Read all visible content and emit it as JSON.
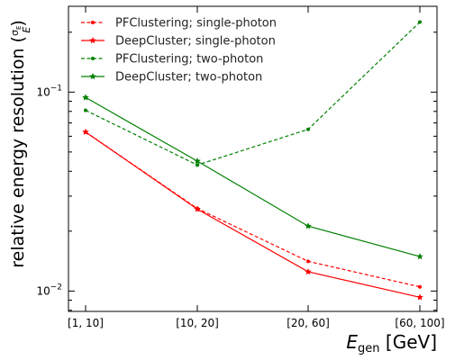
{
  "chart_data": {
    "type": "line",
    "categories": [
      "[1, 10]",
      "[10, 20]",
      "[20, 60]",
      "[60, 100]"
    ],
    "yscale": "log",
    "ylim": [
      0.0079,
      0.27
    ],
    "yticks": [
      {
        "value": 0.01,
        "base": "10",
        "exp": "−2"
      },
      {
        "value": 0.1,
        "base": "10",
        "exp": "−1"
      }
    ],
    "ylabel": {
      "text": "relative energy resolution (",
      "frac_num": "σ",
      "frac_num_sub": "E",
      "frac_den": "E",
      "close": ")"
    },
    "xlabel": {
      "var": "E",
      "sub": "gen",
      "unit": " [GeV]"
    },
    "grid": false,
    "legend_position": "top-left",
    "series": [
      {
        "name": "PFClustering; single-photon",
        "color": "#ff0000",
        "dash": "dashed",
        "marker": "dot",
        "values": [
          0.063,
          0.026,
          0.0141,
          0.0105
        ]
      },
      {
        "name": "DeepCluster; single-photon",
        "color": "#ff0000",
        "dash": "solid",
        "marker": "star",
        "values": [
          0.063,
          0.0258,
          0.0125,
          0.0093
        ]
      },
      {
        "name": "PFClustering; two-photon",
        "color": "#008000",
        "dash": "dashed",
        "marker": "dot",
        "values": [
          0.081,
          0.043,
          0.065,
          0.225
        ]
      },
      {
        "name": "DeepCluster; two-photon",
        "color": "#008000",
        "dash": "solid",
        "marker": "star",
        "values": [
          0.094,
          0.045,
          0.0212,
          0.0149
        ]
      }
    ]
  }
}
